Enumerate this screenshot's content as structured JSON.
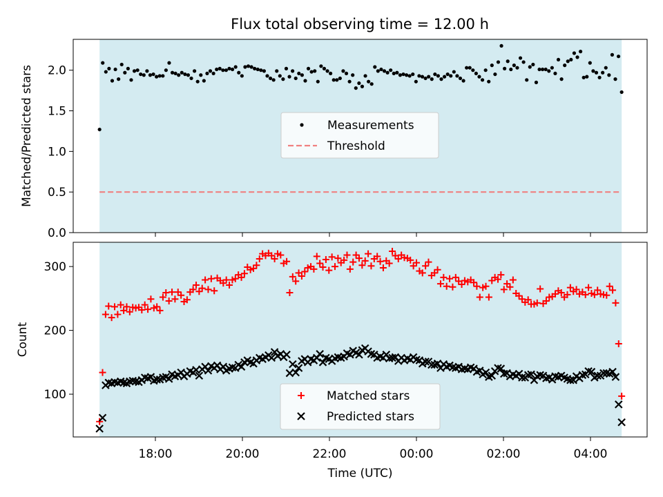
{
  "chart_data": {
    "title": "Flux total observing time = 12.00 h",
    "xlabel": "Time (UTC)",
    "x_ticks": [
      "18:00",
      "20:00",
      "22:00",
      "00:00",
      "02:00",
      "04:00"
    ],
    "observing_window": {
      "start": "16:43",
      "end": "04:43",
      "color": "#d4ebf1"
    },
    "panels": [
      {
        "type": "scatter",
        "ylabel": "Matched/Predicted stars",
        "ylim": [
          0,
          2.38
        ],
        "y_ticks": [
          "0.0",
          "0.5",
          "1.0",
          "1.5",
          "2.0"
        ],
        "legend_position": "center",
        "series": [
          {
            "name": "Measurements",
            "marker": "dot",
            "color": "#000000",
            "values": [
              1.27,
              2.09,
              1.98,
              2.02,
              1.87,
              2.01,
              1.89,
              2.07,
              1.97,
              2.02,
              1.88,
              1.99,
              2.0,
              1.95,
              1.94,
              1.99,
              1.94,
              1.95,
              1.92,
              1.93,
              1.93,
              2.0,
              2.09,
              1.97,
              1.96,
              1.94,
              1.97,
              1.95,
              1.94,
              1.9,
              1.99,
              1.86,
              1.94,
              1.87,
              1.96,
              1.99,
              1.96,
              2.01,
              2.02,
              2.0,
              2.0,
              2.02,
              2.01,
              2.04,
              1.97,
              1.93,
              2.04,
              2.05,
              2.04,
              2.02,
              2.01,
              2.0,
              1.99,
              1.93,
              1.9,
              1.88,
              1.99,
              1.93,
              1.89,
              2.02,
              1.92,
              1.99,
              1.9,
              1.96,
              1.94,
              1.87,
              2.02,
              1.98,
              1.99,
              1.86,
              2.05,
              2.02,
              1.99,
              1.96,
              1.88,
              1.88,
              1.9,
              1.99,
              1.96,
              1.86,
              1.94,
              1.78,
              1.84,
              1.8,
              1.93,
              1.86,
              1.83,
              2.04,
              1.99,
              2.01,
              1.99,
              1.97,
              2.0,
              1.96,
              1.97,
              1.94,
              1.95,
              1.94,
              1.93,
              1.95,
              1.86,
              1.93,
              1.92,
              1.9,
              1.92,
              1.89,
              1.95,
              1.93,
              1.89,
              1.92,
              1.95,
              1.93,
              1.98,
              1.93,
              1.9,
              1.87,
              2.03,
              2.03,
              2.0,
              1.96,
              1.92,
              1.88,
              2.0,
              1.86,
              2.06,
              1.95,
              2.1,
              2.3,
              2.02,
              2.11,
              2.01,
              2.06,
              2.03,
              2.15,
              2.1,
              1.88,
              2.04,
              2.07,
              1.85,
              2.01,
              2.01,
              2.01,
              1.99,
              2.03,
              1.96,
              2.13,
              1.89,
              2.06,
              2.11,
              2.13,
              2.21,
              2.16,
              2.23,
              1.91,
              1.92,
              2.09,
              1.99,
              1.97,
              1.91,
              1.97,
              2.03,
              1.94,
              2.19,
              1.89,
              2.17,
              1.73
            ]
          },
          {
            "name": "Threshold",
            "marker": "dashed-line",
            "color": "#f08080",
            "constant": 0.5
          }
        ]
      },
      {
        "type": "scatter",
        "ylabel": "Count",
        "ylim": [
          33,
          338
        ],
        "y_ticks": [
          "100",
          "200",
          "300"
        ],
        "legend_position": "lower center",
        "series": [
          {
            "name": "Matched stars",
            "marker": "plus",
            "color": "#ff0000",
            "values": [
              57,
              134,
              225,
              238,
              220,
              237,
              225,
              240,
              231,
              237,
              229,
              236,
              235,
              236,
              232,
              240,
              233,
              249,
              235,
              237,
              231,
              252,
              259,
              246,
              260,
              249,
              260,
              255,
              245,
              248,
              260,
              264,
              271,
              261,
              266,
              279,
              264,
              281,
              262,
              282,
              278,
              274,
              279,
              271,
              279,
              281,
              287,
              283,
              289,
              299,
              295,
              297,
              302,
              312,
              320,
              317,
              321,
              317,
              312,
              320,
              318,
              305,
              308,
              259,
              284,
              277,
              290,
              285,
              292,
              298,
              300,
              296,
              316,
              305,
              299,
              311,
              294,
              315,
              300,
              313,
              306,
              310,
              318,
              296,
              307,
              318,
              313,
              302,
              309,
              320,
              301,
              312,
              316,
              308,
              298,
              309,
              305,
              324,
              317,
              312,
              318,
              314,
              313,
              310,
              301,
              306,
              293,
              290,
              301,
              307,
              286,
              290,
              295,
              273,
              283,
              269,
              281,
              268,
              283,
              277,
              272,
              278,
              276,
              279,
              275,
              269,
              252,
              267,
              269,
              252,
              278,
              283,
              280,
              287,
              264,
              273,
              268,
              279,
              258,
              254,
              249,
              244,
              248,
              241,
              241,
              243,
              265,
              242,
              246,
              252,
              253,
              257,
              262,
              259,
              252,
              256,
              267,
              261,
              264,
              257,
              260,
              256,
              267,
              258,
              256,
              263,
              257,
              256,
              255,
              269,
              263,
              243,
              179,
              97
            ]
          },
          {
            "name": "Predicted stars",
            "marker": "x",
            "color": "#000000",
            "values": [
              46,
              63,
              114,
              118,
              117,
              119,
              118,
              120,
              118,
              117,
              120,
              121,
              120,
              119,
              122,
              126,
              125,
              127,
              121,
              123,
              123,
              126,
              127,
              124,
              131,
              128,
              130,
              134,
              128,
              132,
              136,
              134,
              138,
              129,
              139,
              143,
              137,
              144,
              141,
              145,
              139,
              143,
              137,
              140,
              142,
              141,
              146,
              143,
              150,
              153,
              150,
              148,
              153,
              157,
              155,
              158,
              161,
              157,
              166,
              160,
              163,
              158,
              162,
              133,
              147,
              134,
              141,
              152,
              155,
              150,
              155,
              153,
              157,
              163,
              150,
              157,
              155,
              152,
              156,
              158,
              157,
              159,
              164,
              162,
              168,
              165,
              162,
              169,
              172,
              167,
              163,
              162,
              157,
              159,
              157,
              162,
              156,
              157,
              158,
              152,
              157,
              153,
              156,
              154,
              158,
              154,
              153,
              148,
              151,
              151,
              146,
              146,
              148,
              141,
              147,
              143,
              145,
              142,
              141,
              143,
              139,
              140,
              139,
              142,
              140,
              135,
              137,
              131,
              134,
              127,
              129,
              136,
              141,
              140,
              132,
              133,
              128,
              131,
              129,
              132,
              126,
              126,
              130,
              131,
              122,
              128,
              130,
              129,
              125,
              126,
              123,
              128,
              127,
              129,
              126,
              124,
              122,
              122,
              128,
              125,
              130,
              131,
              136,
              135,
              126,
              129,
              129,
              133,
              133,
              132,
              135,
              127,
              84,
              56
            ]
          }
        ]
      }
    ]
  }
}
